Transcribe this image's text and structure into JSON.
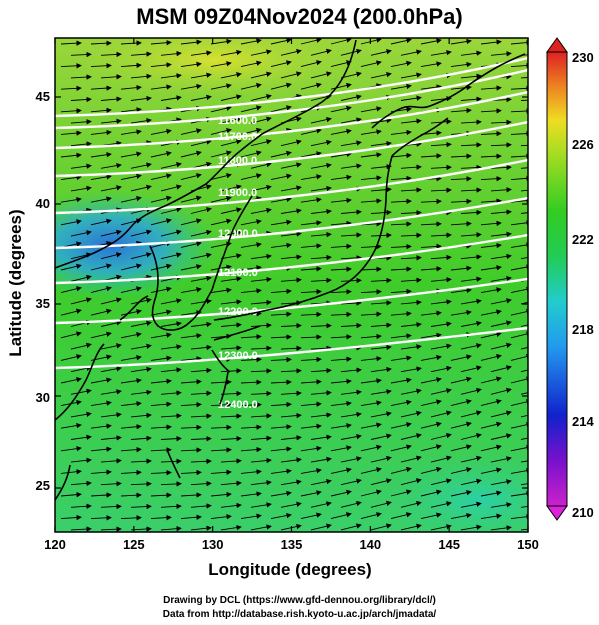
{
  "title": "MSM 09Z04Nov2024 (200.0hPa)",
  "xlabel": "Longitude (degrees)",
  "ylabel": "Latitude  (degrees)",
  "x_ticks": [
    "120",
    "125",
    "130",
    "135",
    "140",
    "145",
    "150"
  ],
  "y_ticks": [
    "25",
    "30",
    "35",
    "40",
    "45"
  ],
  "colorbar_ticks": [
    "230",
    "226",
    "222",
    "218",
    "214",
    "210"
  ],
  "credits": {
    "line1": "Drawing by DCL (https://www.gfd-dennou.org/library/dcl/)",
    "line2": "Data from http://database.rish.kyoto-u.ac.jp/arch/jmadata/"
  },
  "contour_labels": [
    "11600.0",
    "11700.0",
    "11800.0",
    "11900.0",
    "12000.0",
    "12100.0",
    "12200.0",
    "12300.0",
    "12400.0"
  ],
  "map": {
    "lon_range": [
      120,
      150
    ],
    "lat_range": [
      22.4,
      47.6
    ],
    "colorbar_range": [
      210,
      230
    ],
    "variable_color": "temperature (K) shaded",
    "contour_color": "#ffffff",
    "coastline_color": "#000000",
    "vector_color": "#000000",
    "colors": {
      "c210": "#ff33cc",
      "c214": "#2233dd",
      "c218": "#22ccdd",
      "c222": "#22cc22",
      "c226": "#ccdd22",
      "c230": "#ee2222"
    }
  }
}
